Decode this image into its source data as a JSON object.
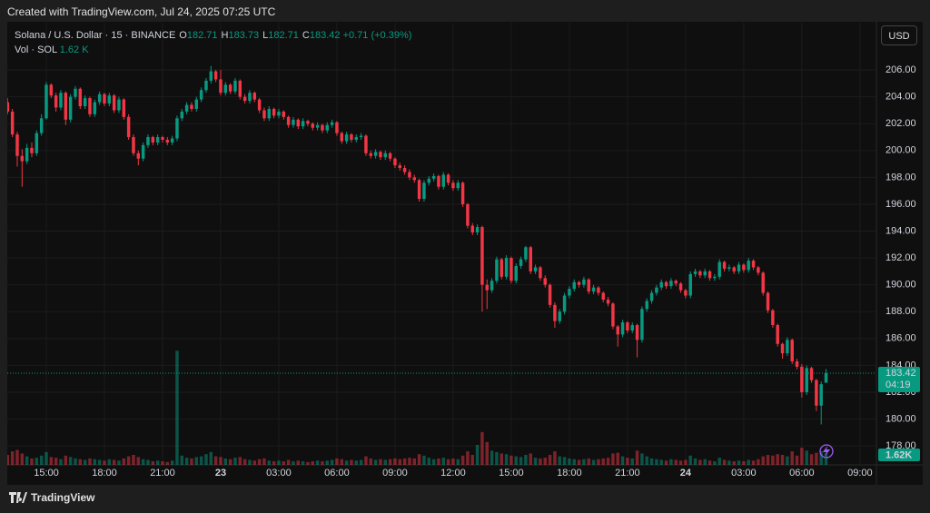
{
  "page": {
    "created": "Created with TradingView.com, Jul 24, 2025 07:25 UTC",
    "symbol": "Solana / U.S. Dollar · 15 · BINANCE",
    "ohlc": [
      {
        "key": "O",
        "value": "182.71"
      },
      {
        "key": "H",
        "value": "183.73"
      },
      {
        "key": "L",
        "value": "182.71"
      },
      {
        "key": "C",
        "value": "183.42"
      }
    ],
    "change": "+0.71 (+0.39%)",
    "volume_legend": "Vol · SOL",
    "volume_legend_value": "1.62 K",
    "currency": "USD",
    "brand": "TradingView"
  },
  "chart_data": {
    "type": "candlestick",
    "up_color": "#089981",
    "down_color": "#f23645",
    "grid": true,
    "ylim": [
      176.59,
      209.52
    ],
    "yticks": [
      {
        "value": 178,
        "label": "178.00"
      },
      {
        "value": 180,
        "label": "180.00"
      },
      {
        "value": 182,
        "label": "182.00"
      },
      {
        "value": 184,
        "label": "184.00"
      },
      {
        "value": 186,
        "label": "186.00"
      },
      {
        "value": 188,
        "label": "188.00"
      },
      {
        "value": 190,
        "label": "190.00"
      },
      {
        "value": 192,
        "label": "192.00"
      },
      {
        "value": 194,
        "label": "194.00"
      },
      {
        "value": 196,
        "label": "196.00"
      },
      {
        "value": 198,
        "label": "198.00"
      },
      {
        "value": 200,
        "label": "200.00"
      },
      {
        "value": 202,
        "label": "202.00"
      },
      {
        "value": 204,
        "label": "204.00"
      },
      {
        "value": 206,
        "label": "206.00"
      }
    ],
    "xlim": [
      -0.06,
      179.4
    ],
    "xticks": [
      {
        "value": 8,
        "label": "15:00"
      },
      {
        "value": 20,
        "label": "18:00"
      },
      {
        "value": 32,
        "label": "21:00"
      },
      {
        "value": 44,
        "label": "23"
      },
      {
        "value": 56,
        "label": "03:00"
      },
      {
        "value": 68,
        "label": "06:00"
      },
      {
        "value": 80,
        "label": "09:00"
      },
      {
        "value": 92,
        "label": "12:00"
      },
      {
        "value": 104,
        "label": "15:00"
      },
      {
        "value": 116,
        "label": "18:00"
      },
      {
        "value": 128,
        "label": "21:00"
      },
      {
        "value": 140,
        "label": "24"
      },
      {
        "value": 152,
        "label": "03:00"
      },
      {
        "value": 164,
        "label": "06:00"
      },
      {
        "value": 176,
        "label": "09:00"
      }
    ],
    "volume_lim": [
      0,
      62
    ],
    "last_price": 183.42,
    "countdown": "04:19",
    "last_volume_label": "1.62K",
    "candles": [
      [
        203.6,
        203.9,
        202.7,
        202.9
      ],
      [
        202.9,
        203.1,
        201.0,
        201.2
      ],
      [
        201.2,
        201.4,
        198.8,
        199.6
      ],
      [
        199.6,
        200.1,
        197.3,
        199.2
      ],
      [
        199.2,
        200.5,
        199.0,
        200.2
      ],
      [
        200.2,
        200.6,
        199.5,
        199.8
      ],
      [
        199.8,
        201.5,
        199.6,
        201.3
      ],
      [
        201.3,
        202.7,
        201.1,
        202.4
      ],
      [
        202.4,
        205.1,
        202.3,
        204.9
      ],
      [
        204.9,
        205.0,
        203.9,
        204.1
      ],
      [
        204.1,
        204.3,
        202.9,
        203.2
      ],
      [
        203.2,
        204.5,
        203.0,
        204.3
      ],
      [
        204.3,
        204.4,
        201.9,
        202.3
      ],
      [
        202.3,
        204.2,
        202.1,
        204.0
      ],
      [
        204.0,
        204.8,
        203.8,
        204.6
      ],
      [
        204.6,
        204.7,
        203.1,
        203.3
      ],
      [
        203.3,
        204.1,
        203.1,
        203.9
      ],
      [
        203.9,
        204.0,
        202.5,
        202.7
      ],
      [
        202.7,
        203.8,
        202.5,
        203.6
      ],
      [
        203.6,
        204.4,
        203.4,
        204.2
      ],
      [
        204.2,
        204.3,
        203.3,
        203.5
      ],
      [
        203.5,
        204.3,
        203.3,
        204.1
      ],
      [
        204.1,
        204.2,
        202.8,
        203.0
      ],
      [
        203.0,
        204.0,
        202.8,
        203.8
      ],
      [
        203.8,
        203.9,
        202.3,
        202.5
      ],
      [
        202.5,
        202.7,
        200.8,
        201.0
      ],
      [
        201.0,
        201.2,
        199.6,
        199.8
      ],
      [
        199.8,
        200.0,
        198.9,
        199.4
      ],
      [
        199.4,
        200.6,
        199.2,
        200.4
      ],
      [
        200.4,
        201.2,
        200.2,
        201.0
      ],
      [
        201.0,
        201.1,
        200.4,
        200.6
      ],
      [
        200.6,
        201.2,
        200.4,
        201.0
      ],
      [
        201.0,
        201.1,
        200.6,
        200.8
      ],
      [
        200.8,
        201.0,
        200.4,
        200.6
      ],
      [
        200.6,
        201.1,
        200.4,
        200.9
      ],
      [
        200.9,
        202.6,
        200.7,
        202.4
      ],
      [
        202.4,
        203.1,
        202.2,
        202.9
      ],
      [
        202.9,
        203.6,
        202.7,
        203.4
      ],
      [
        203.4,
        203.6,
        202.9,
        203.1
      ],
      [
        203.1,
        204.0,
        202.9,
        203.8
      ],
      [
        203.8,
        204.7,
        203.6,
        204.5
      ],
      [
        204.5,
        205.4,
        204.3,
        205.2
      ],
      [
        205.2,
        206.3,
        205.0,
        205.9
      ],
      [
        205.9,
        206.0,
        205.1,
        205.3
      ],
      [
        205.3,
        206.0,
        204.1,
        204.3
      ],
      [
        204.3,
        205.1,
        204.1,
        204.9
      ],
      [
        204.9,
        205.0,
        204.2,
        204.4
      ],
      [
        204.4,
        205.4,
        204.2,
        205.2
      ],
      [
        205.2,
        205.3,
        203.8,
        204.0
      ],
      [
        204.0,
        204.2,
        203.5,
        203.7
      ],
      [
        203.7,
        204.5,
        203.5,
        204.3
      ],
      [
        204.3,
        204.4,
        203.6,
        203.8
      ],
      [
        203.8,
        203.9,
        202.8,
        203.0
      ],
      [
        203.0,
        203.2,
        202.2,
        202.4
      ],
      [
        202.4,
        203.3,
        202.2,
        203.1
      ],
      [
        203.1,
        203.2,
        202.4,
        202.6
      ],
      [
        202.6,
        203.1,
        202.4,
        202.9
      ],
      [
        202.9,
        203.0,
        202.3,
        202.5
      ],
      [
        202.5,
        202.6,
        201.7,
        201.9
      ],
      [
        201.9,
        202.5,
        201.7,
        202.3
      ],
      [
        202.3,
        202.4,
        201.6,
        201.8
      ],
      [
        201.8,
        202.4,
        201.6,
        202.2
      ],
      [
        202.2,
        202.3,
        201.8,
        202.0
      ],
      [
        202.0,
        202.1,
        201.5,
        201.7
      ],
      [
        201.7,
        202.1,
        201.5,
        201.9
      ],
      [
        201.9,
        202.0,
        201.3,
        201.5
      ],
      [
        201.5,
        202.1,
        201.3,
        201.9
      ],
      [
        201.9,
        202.3,
        201.7,
        202.1
      ],
      [
        202.1,
        202.2,
        201.1,
        201.3
      ],
      [
        201.3,
        201.4,
        200.5,
        200.7
      ],
      [
        200.7,
        201.4,
        200.5,
        201.2
      ],
      [
        201.2,
        201.3,
        200.6,
        200.8
      ],
      [
        200.8,
        201.2,
        200.6,
        201.0
      ],
      [
        201.0,
        201.3,
        200.8,
        201.1
      ],
      [
        201.1,
        201.2,
        199.6,
        199.8
      ],
      [
        199.8,
        200.0,
        199.4,
        199.6
      ],
      [
        199.6,
        200.1,
        199.4,
        199.9
      ],
      [
        199.9,
        200.0,
        199.3,
        199.5
      ],
      [
        199.5,
        200.0,
        199.3,
        199.8
      ],
      [
        199.8,
        199.9,
        199.2,
        199.4
      ],
      [
        199.4,
        199.5,
        198.7,
        198.9
      ],
      [
        198.9,
        199.1,
        198.5,
        198.7
      ],
      [
        198.7,
        198.9,
        198.2,
        198.4
      ],
      [
        198.4,
        198.6,
        197.8,
        198.0
      ],
      [
        198.0,
        198.2,
        197.6,
        197.8
      ],
      [
        197.8,
        197.9,
        196.2,
        196.4
      ],
      [
        196.4,
        197.8,
        196.2,
        197.6
      ],
      [
        197.6,
        198.1,
        197.4,
        197.9
      ],
      [
        197.9,
        198.3,
        197.7,
        198.1
      ],
      [
        198.1,
        198.2,
        197.1,
        197.3
      ],
      [
        197.3,
        198.4,
        197.1,
        198.2
      ],
      [
        198.2,
        198.3,
        197.4,
        197.6
      ],
      [
        197.6,
        197.8,
        197.0,
        197.2
      ],
      [
        197.2,
        197.8,
        197.0,
        197.6
      ],
      [
        197.6,
        197.7,
        195.8,
        196.0
      ],
      [
        196.0,
        196.1,
        194.2,
        194.4
      ],
      [
        194.4,
        194.6,
        193.7,
        193.9
      ],
      [
        193.9,
        194.5,
        193.7,
        194.3
      ],
      [
        194.3,
        194.4,
        188.0,
        190.0
      ],
      [
        190.0,
        190.4,
        188.2,
        189.6
      ],
      [
        189.6,
        190.5,
        189.4,
        190.3
      ],
      [
        190.3,
        192.1,
        190.1,
        191.9
      ],
      [
        191.9,
        192.0,
        190.4,
        190.6
      ],
      [
        190.6,
        192.2,
        190.4,
        192.0
      ],
      [
        192.0,
        192.1,
        190.1,
        190.3
      ],
      [
        190.3,
        191.6,
        190.1,
        191.4
      ],
      [
        191.4,
        192.1,
        191.2,
        191.9
      ],
      [
        191.9,
        192.9,
        191.7,
        192.8
      ],
      [
        192.8,
        192.9,
        190.8,
        191.0
      ],
      [
        191.0,
        191.5,
        190.8,
        191.3
      ],
      [
        191.3,
        191.4,
        190.3,
        190.5
      ],
      [
        190.5,
        190.7,
        189.8,
        190.0
      ],
      [
        190.0,
        190.1,
        188.3,
        188.5
      ],
      [
        188.5,
        188.7,
        186.8,
        187.3
      ],
      [
        187.3,
        188.2,
        187.1,
        188.0
      ],
      [
        188.0,
        189.4,
        187.8,
        189.2
      ],
      [
        189.2,
        189.9,
        189.0,
        189.7
      ],
      [
        189.7,
        190.4,
        189.5,
        190.2
      ],
      [
        190.2,
        190.3,
        189.8,
        190.0
      ],
      [
        190.0,
        190.6,
        189.8,
        190.4
      ],
      [
        190.4,
        190.5,
        189.3,
        189.5
      ],
      [
        189.5,
        190.0,
        189.3,
        189.8
      ],
      [
        189.8,
        189.9,
        189.2,
        189.4
      ],
      [
        189.4,
        189.5,
        188.7,
        188.9
      ],
      [
        188.9,
        189.1,
        188.4,
        188.6
      ],
      [
        188.6,
        188.7,
        186.7,
        186.9
      ],
      [
        186.9,
        187.0,
        185.4,
        186.3
      ],
      [
        186.3,
        187.4,
        186.1,
        187.2
      ],
      [
        187.2,
        187.3,
        186.4,
        186.6
      ],
      [
        186.6,
        187.2,
        186.4,
        187.0
      ],
      [
        187.0,
        187.1,
        184.6,
        185.9
      ],
      [
        185.9,
        188.4,
        185.7,
        188.2
      ],
      [
        188.2,
        189.0,
        188.0,
        188.8
      ],
      [
        188.8,
        189.6,
        188.6,
        189.4
      ],
      [
        189.4,
        190.0,
        189.2,
        189.8
      ],
      [
        189.8,
        190.4,
        189.6,
        190.2
      ],
      [
        190.2,
        190.3,
        189.7,
        189.9
      ],
      [
        189.9,
        190.5,
        189.7,
        190.3
      ],
      [
        190.3,
        190.4,
        189.9,
        190.1
      ],
      [
        190.1,
        190.2,
        189.4,
        189.6
      ],
      [
        189.6,
        189.7,
        189.0,
        189.2
      ],
      [
        189.2,
        191.0,
        189.0,
        190.8
      ],
      [
        190.8,
        191.2,
        190.6,
        191.0
      ],
      [
        191.0,
        191.1,
        190.5,
        190.7
      ],
      [
        190.7,
        191.2,
        190.5,
        191.0
      ],
      [
        191.0,
        191.1,
        190.3,
        190.5
      ],
      [
        190.5,
        190.8,
        190.3,
        190.6
      ],
      [
        190.6,
        191.9,
        190.4,
        191.7
      ],
      [
        191.7,
        191.8,
        191.0,
        191.2
      ],
      [
        191.2,
        191.5,
        191.0,
        191.3
      ],
      [
        191.3,
        191.4,
        190.8,
        191.0
      ],
      [
        191.0,
        191.7,
        190.8,
        191.5
      ],
      [
        191.5,
        191.6,
        190.9,
        191.1
      ],
      [
        191.1,
        192.0,
        190.9,
        191.8
      ],
      [
        191.8,
        191.9,
        191.1,
        191.3
      ],
      [
        191.3,
        191.4,
        190.7,
        190.9
      ],
      [
        190.9,
        191.0,
        189.2,
        189.4
      ],
      [
        189.4,
        189.5,
        187.9,
        188.1
      ],
      [
        188.1,
        188.2,
        186.8,
        187.0
      ],
      [
        187.0,
        187.1,
        185.4,
        185.6
      ],
      [
        185.6,
        185.7,
        184.5,
        184.9
      ],
      [
        184.9,
        186.1,
        184.7,
        185.9
      ],
      [
        185.9,
        186.0,
        184.1,
        184.3
      ],
      [
        184.3,
        184.5,
        183.7,
        183.9
      ],
      [
        183.9,
        184.1,
        181.6,
        182.0
      ],
      [
        182.0,
        184.0,
        181.8,
        183.8
      ],
      [
        183.8,
        183.9,
        182.7,
        182.9
      ],
      [
        182.9,
        183.0,
        180.6,
        181.0
      ],
      [
        181.0,
        182.8,
        179.6,
        182.6
      ],
      [
        182.71,
        183.73,
        182.71,
        183.42
      ]
    ],
    "volume": [
      1.4,
      1.9,
      2.1,
      1.6,
      1.2,
      0.9,
      1.0,
      1.3,
      1.8,
      1.1,
      1.0,
      0.8,
      1.3,
      1.1,
      0.9,
      0.8,
      0.7,
      0.9,
      0.8,
      0.7,
      0.6,
      0.8,
      0.7,
      0.6,
      0.9,
      1.2,
      1.4,
      1.1,
      0.8,
      0.7,
      0.5,
      0.6,
      0.5,
      0.4,
      0.6,
      16.0,
      1.3,
      1.0,
      0.9,
      1.1,
      1.2,
      1.5,
      1.8,
      1.2,
      1.1,
      0.9,
      0.8,
      1.0,
      1.1,
      0.8,
      0.7,
      0.6,
      0.8,
      0.9,
      0.6,
      0.5,
      0.6,
      0.5,
      0.7,
      0.5,
      0.6,
      0.5,
      0.4,
      0.5,
      0.6,
      0.5,
      0.6,
      0.7,
      0.9,
      0.8,
      0.6,
      0.7,
      0.6,
      0.7,
      1.2,
      0.9,
      0.7,
      0.8,
      0.7,
      0.8,
      0.9,
      0.8,
      0.9,
      1.0,
      0.9,
      1.5,
      1.3,
      1.0,
      0.8,
      0.9,
      1.0,
      0.8,
      0.9,
      0.8,
      1.3,
      1.9,
      1.4,
      2.8,
      4.6,
      3.2,
      2.0,
      1.8,
      1.6,
      1.5,
      1.3,
      1.2,
      1.1,
      1.4,
      1.6,
      1.0,
      0.9,
      1.0,
      1.4,
      1.9,
      1.2,
      1.1,
      0.9,
      0.8,
      0.7,
      0.8,
      0.9,
      0.7,
      0.8,
      0.9,
      1.0,
      1.6,
      1.7,
      1.2,
      1.0,
      0.9,
      2.0,
      1.6,
      1.2,
      0.9,
      0.8,
      0.7,
      0.6,
      0.8,
      0.7,
      0.6,
      0.7,
      1.3,
      0.9,
      0.7,
      0.8,
      0.6,
      0.5,
      1.0,
      0.7,
      0.6,
      0.5,
      0.6,
      0.5,
      0.7,
      0.6,
      0.8,
      1.2,
      1.4,
      1.3,
      1.5,
      1.4,
      1.2,
      1.9,
      1.3,
      2.4,
      2.0,
      1.5,
      1.7,
      1.9,
      1.62
    ]
  }
}
